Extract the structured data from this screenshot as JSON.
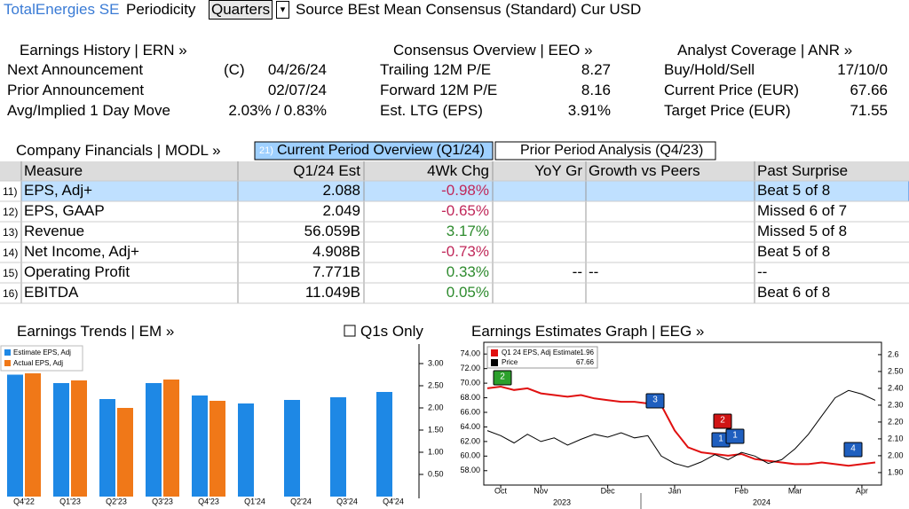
{
  "header": {
    "company": "TotalEnergies SE",
    "periodicity_label": "Periodicity",
    "periodicity": "Quarters",
    "source": "Source BEst Mean Consensus (Standard) Cur USD"
  },
  "panels": [
    {
      "title": "Earnings History | ERN »",
      "rows": [
        {
          "label": "Next Announcement",
          "prefix": "(C)",
          "value": "04/26/24"
        },
        {
          "label": "Prior Announcement",
          "value": "02/07/24"
        },
        {
          "label": "Avg/Implied 1 Day Move",
          "value": "2.03% / 0.83%"
        }
      ]
    },
    {
      "title": "Consensus Overview | EEO »",
      "rows": [
        {
          "label": "Trailing 12M P/E",
          "value": "8.27"
        },
        {
          "label": "Forward 12M P/E",
          "value": "8.16"
        },
        {
          "label": "Est. LTG (EPS)",
          "value": "3.91%"
        }
      ]
    },
    {
      "title": "Analyst Coverage | ANR »",
      "rows": [
        {
          "label": "Buy/Hold/Sell",
          "value": "17/10/0"
        },
        {
          "label": "Current Price (EUR)",
          "value": "67.66"
        },
        {
          "label": "Target Price (EUR)",
          "value": "71.55"
        }
      ]
    }
  ],
  "financials": {
    "title": "Company Financials | MODL »",
    "tabs": [
      {
        "num": "21)",
        "label": "Current Period Overview (Q1/24)"
      },
      {
        "label": "Prior Period Analysis (Q4/23)"
      }
    ],
    "columns": [
      "Measure",
      "Q1/24 Est",
      "4Wk Chg",
      "YoY Gr",
      "Growth vs Peers",
      "Past Surprise"
    ],
    "rows": [
      {
        "num": "11)",
        "measure": "EPS, Adj+",
        "est": "2.088",
        "chg": "-0.98%",
        "surprise": "Beat 5 of 8"
      },
      {
        "num": "12)",
        "measure": "EPS, GAAP",
        "est": "2.049",
        "chg": "-0.65%",
        "surprise": "Missed 6 of 7"
      },
      {
        "num": "13)",
        "measure": "Revenue",
        "est": "56.059B",
        "chg": "3.17%",
        "surprise": "Missed 5 of 8"
      },
      {
        "num": "14)",
        "measure": "Net Income, Adj+",
        "est": "4.908B",
        "chg": "-0.73%",
        "surprise": "Beat 5 of 8"
      },
      {
        "num": "15)",
        "measure": "Operating Profit",
        "est": "7.771B",
        "chg": "0.33%",
        "yoy": "--",
        "peers": "--",
        "surprise": "--"
      },
      {
        "num": "16)",
        "measure": "EBITDA",
        "est": "11.049B",
        "chg": "0.05%",
        "surprise": "Beat 6 of 8"
      }
    ]
  },
  "trends_chart": {
    "type": "bar",
    "title": "Earnings Trends | EM »",
    "option": "Q1s Only",
    "categories": [
      "Q4'22",
      "Q1'23",
      "Q2'23",
      "Q3'23",
      "Q4'23",
      "Q1'24",
      "Q2'24",
      "Q3'24",
      "Q4'24"
    ],
    "series": [
      {
        "name": "Estimate EPS, Adj",
        "color": "#1e88e5",
        "values": [
          2.75,
          2.56,
          2.2,
          2.56,
          2.28,
          2.1,
          2.18,
          2.24,
          2.36
        ]
      },
      {
        "name": "Actual EPS, Adj",
        "color": "#f07818",
        "values": [
          2.78,
          2.62,
          2.0,
          2.64,
          2.16,
          null,
          null,
          null,
          null
        ]
      }
    ],
    "ylim": [
      0,
      3.3
    ],
    "yticks": [
      {
        "value": 0.5,
        "label": "0.50"
      },
      {
        "value": 1,
        "label": "1.00"
      },
      {
        "value": 1.5,
        "label": "1.50"
      },
      {
        "value": 2,
        "label": "2.00"
      },
      {
        "value": 2.5,
        "label": "2.50"
      },
      {
        "value": 3,
        "label": "3.00"
      }
    ]
  },
  "estimates_chart": {
    "type": "line",
    "title": "Earnings Estimates Graph | EEG »",
    "categories": [
      null,
      "Oct",
      null,
      null,
      "Nov",
      null,
      null,
      null,
      null,
      "Dec",
      null,
      null,
      null,
      null,
      "Jan",
      null,
      null,
      null,
      null,
      "Feb",
      null,
      null,
      null,
      "Mar",
      null,
      null,
      null,
      null,
      "Apr",
      null
    ],
    "year_labels": [
      "2023",
      "2024"
    ],
    "series": [
      {
        "name": "Q1 24 EPS, Adj Estimate",
        "last": 1.96,
        "color": "#e01010",
        "axis": "y2",
        "values": [
          2.4,
          2.41,
          2.39,
          2.4,
          2.37,
          2.36,
          2.35,
          2.36,
          2.34,
          2.33,
          2.32,
          2.32,
          2.31,
          2.3,
          2.15,
          2.05,
          2.02,
          2.01,
          2.0,
          2.01,
          1.98,
          1.97,
          1.96,
          1.95,
          1.95,
          1.96,
          1.95,
          1.94,
          1.95,
          1.96
        ]
      },
      {
        "name": "Price",
        "last": 67.66,
        "color": "#000000",
        "values": [
          63.5,
          62.8,
          61.8,
          63.0,
          62.0,
          62.5,
          61.5,
          62.3,
          63.0,
          62.6,
          63.2,
          62.5,
          62.8,
          60.0,
          59.0,
          58.5,
          59.2,
          60.2,
          59.5,
          60.5,
          60.0,
          59.0,
          59.5,
          61.0,
          63.0,
          65.5,
          68.0,
          69.0,
          68.5,
          67.66
        ]
      }
    ],
    "ylim": [
      57,
      75
    ],
    "yticks": [
      {
        "value": 58,
        "label": "58.00"
      },
      {
        "value": 60,
        "label": "60.00"
      },
      {
        "value": 62,
        "label": "62.00"
      },
      {
        "value": 64,
        "label": "64.00"
      },
      {
        "value": 66,
        "label": "66.00"
      },
      {
        "value": 68,
        "label": "68.00"
      },
      {
        "value": 70,
        "label": "70.00"
      },
      {
        "value": 72,
        "label": "72.00"
      },
      {
        "value": 74,
        "label": "74.00"
      }
    ],
    "y2lim": [
      1.868,
      2.647
    ],
    "y2ticks": [
      {
        "value": 1.9,
        "label": "1.90"
      },
      {
        "value": 2,
        "label": "2.00"
      },
      {
        "value": 2.1,
        "label": "2.10"
      },
      {
        "value": 2.2,
        "label": "2.20"
      },
      {
        "value": 2.3,
        "label": "2.30"
      },
      {
        "value": 2.4,
        "label": "2.40"
      },
      {
        "value": 2.5,
        "label": "2.50"
      },
      2.6
    ],
    "events": [
      {
        "label": "2",
        "color": "#2ca02c"
      },
      {
        "label": "3",
        "color": "#1f5fbf"
      },
      {
        "label": "2",
        "color": "#d01515"
      },
      {
        "label": "1",
        "color": "#1f5fbf"
      },
      {
        "label": "1",
        "color": "#1f5fbf"
      },
      {
        "label": "4",
        "color": "#1f5fbf"
      }
    ]
  }
}
